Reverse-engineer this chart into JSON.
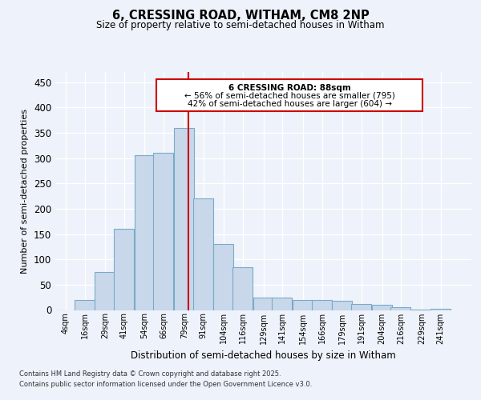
{
  "title": "6, CRESSING ROAD, WITHAM, CM8 2NP",
  "subtitle": "Size of property relative to semi-detached houses in Witham",
  "xlabel": "Distribution of semi-detached houses by size in Witham",
  "ylabel": "Number of semi-detached properties",
  "footnote1": "Contains HM Land Registry data © Crown copyright and database right 2025.",
  "footnote2": "Contains public sector information licensed under the Open Government Licence v3.0.",
  "annotation_title": "6 CRESSING ROAD: 88sqm",
  "annotation_line1": "← 56% of semi-detached houses are smaller (795)",
  "annotation_line2": "42% of semi-detached houses are larger (604) →",
  "bar_color": "#c8d8ea",
  "bar_edge_color": "#7aaac8",
  "highlight_color": "#cc0000",
  "background_color": "#eef2fa",
  "grid_color": "#ffffff",
  "property_value": 88,
  "bin_starts": [
    4,
    16,
    29,
    41,
    54,
    66,
    79,
    91,
    104,
    116,
    129,
    141,
    154,
    166,
    179,
    191,
    204,
    216,
    229,
    241
  ],
  "bin_width": 13,
  "bar_heights": [
    0,
    20,
    75,
    160,
    305,
    310,
    360,
    220,
    130,
    85,
    25,
    25,
    20,
    20,
    18,
    12,
    10,
    5,
    1,
    3
  ],
  "yticks": [
    0,
    50,
    100,
    150,
    200,
    250,
    300,
    350,
    400,
    450
  ],
  "ylim": [
    0,
    470
  ],
  "xlim_min": 4,
  "xlim_max": 267
}
